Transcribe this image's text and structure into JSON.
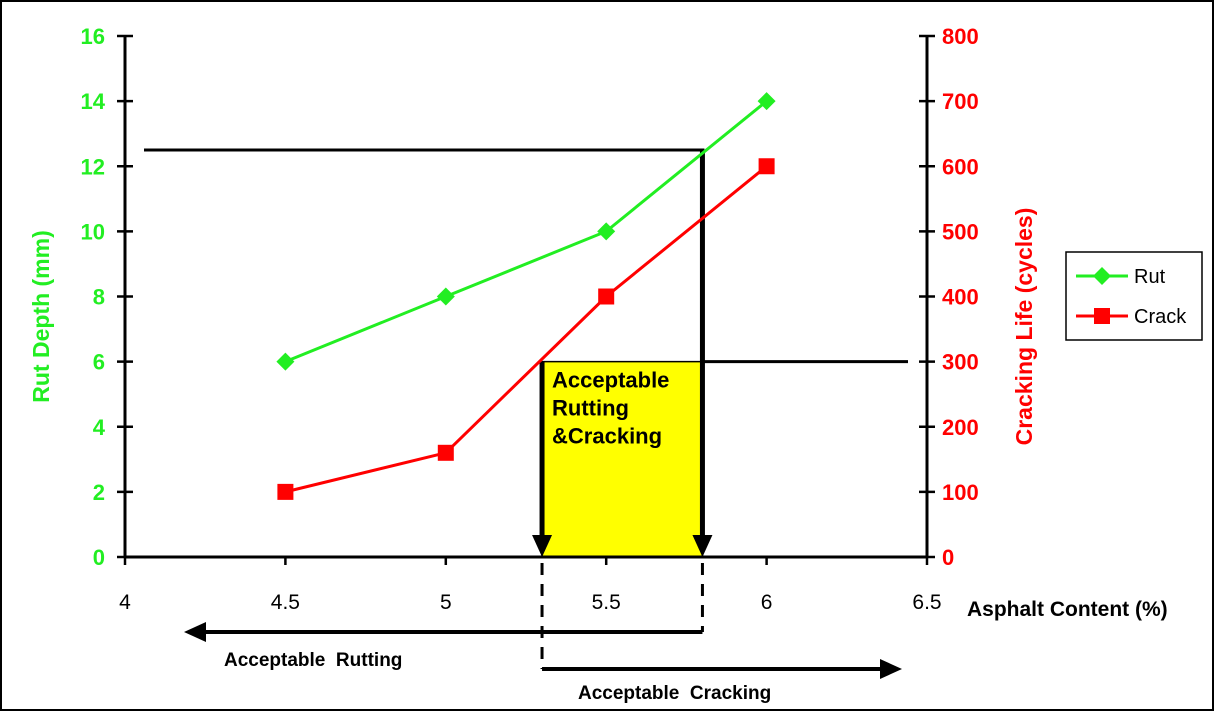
{
  "chart_data": {
    "type": "line",
    "x": [
      4.5,
      5,
      5.5,
      6
    ],
    "series": [
      {
        "name": "Rut",
        "axis": "left",
        "color": "#22ee22",
        "marker": "diamond",
        "values": [
          6,
          8,
          10,
          14
        ]
      },
      {
        "name": "Crack",
        "axis": "right",
        "color": "#ff0000",
        "marker": "square",
        "values": [
          100,
          160,
          400,
          600
        ]
      }
    ],
    "xlabel": "Asphalt Content (%)",
    "ylabel": "Rut Depth (mm)",
    "y2label": "Cracking Life (cycles)",
    "xlim": [
      4,
      6.5
    ],
    "ylim": [
      0,
      16
    ],
    "y2lim": [
      0,
      800
    ],
    "x_ticks": [
      "4",
      "4.5",
      "5",
      "5.5",
      "6",
      "6.5"
    ],
    "y_ticks": [
      "0",
      "2",
      "4",
      "6",
      "8",
      "10",
      "12",
      "14",
      "16"
    ],
    "y2_ticks": [
      "0",
      "100",
      "200",
      "300",
      "400",
      "500",
      "600",
      "700",
      "800"
    ],
    "legend_position": "right",
    "grid": false,
    "annotations": {
      "box_label": [
        "Acceptable",
        "Rutting",
        "&Cracking"
      ],
      "box_range": {
        "x_from": 5.3,
        "x_to": 5.8,
        "y2_top": 300
      },
      "rut_limit": {
        "y": 12.5,
        "x_at": 5.8
      },
      "crack_limit": {
        "y2": 300,
        "x_at": 5.3
      },
      "rutting_label": "Acceptable  Rutting",
      "cracking_label": "Acceptable  Cracking"
    }
  }
}
